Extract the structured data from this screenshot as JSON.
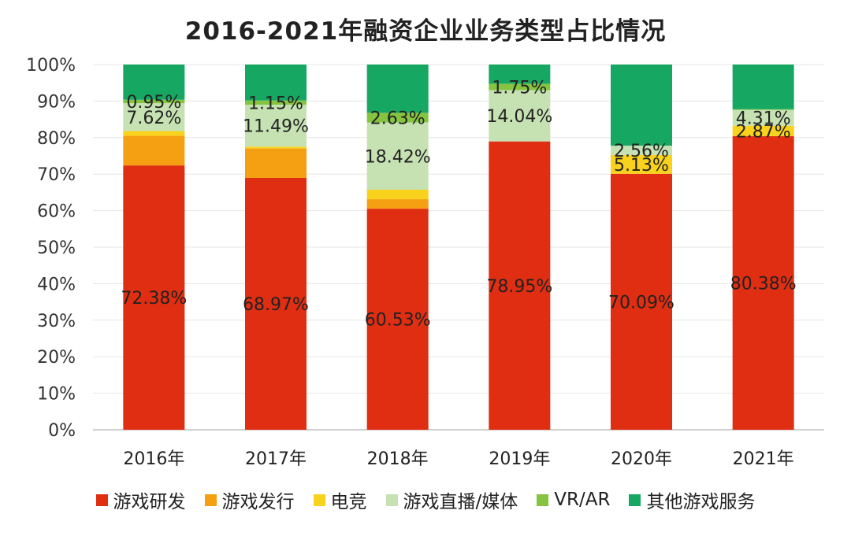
{
  "chart_data": {
    "type": "stacked-bar",
    "title": "2016-2021年融资企业业务类型占比情况",
    "categories": [
      "2016年",
      "2017年",
      "2018年",
      "2019年",
      "2020年",
      "2021年"
    ],
    "ylim": [
      0,
      100
    ],
    "yticks": [
      "0%",
      "10%",
      "20%",
      "30%",
      "40%",
      "50%",
      "60%",
      "70%",
      "80%",
      "90%",
      "100%"
    ],
    "series": [
      {
        "name": "游戏研发",
        "color": "#e02e12",
        "values": [
          72.38,
          68.97,
          60.53,
          78.95,
          70.09,
          80.38
        ],
        "labels": [
          "72.38%",
          "68.97%",
          "60.53%",
          "78.95%",
          "70.09%",
          "80.38%"
        ]
      },
      {
        "name": "游戏发行",
        "color": "#f5a012",
        "values": [
          8.1,
          8.05,
          2.6,
          0,
          0,
          0
        ],
        "labels": [
          "",
          "",
          "",
          "",
          "",
          ""
        ]
      },
      {
        "name": "电竞",
        "color": "#f8d21d",
        "values": [
          1.3,
          0.5,
          2.6,
          0,
          5.13,
          2.87
        ],
        "labels": [
          "",
          "",
          "",
          "",
          "5.13%",
          "2.87%"
        ]
      },
      {
        "name": "游戏直播/媒体",
        "color": "#c6e2b3",
        "values": [
          7.62,
          11.49,
          18.42,
          14.04,
          2.56,
          4.31
        ],
        "labels": [
          "7.62%",
          "11.49%",
          "18.42%",
          "14.04%",
          "2.56%",
          "4.31%"
        ]
      },
      {
        "name": "VR/AR",
        "color": "#86c440",
        "values": [
          0.95,
          1.15,
          2.63,
          1.75,
          0,
          0.2
        ],
        "labels": [
          "0.95%",
          "1.15%",
          "2.63%",
          "1.75%",
          "",
          ""
        ]
      },
      {
        "name": "其他游戏服务",
        "color": "#16a862",
        "values": [
          9.65,
          9.84,
          13.22,
          5.26,
          22.22,
          12.24
        ],
        "labels": [
          "",
          "",
          "",
          "",
          "",
          ""
        ]
      }
    ]
  }
}
